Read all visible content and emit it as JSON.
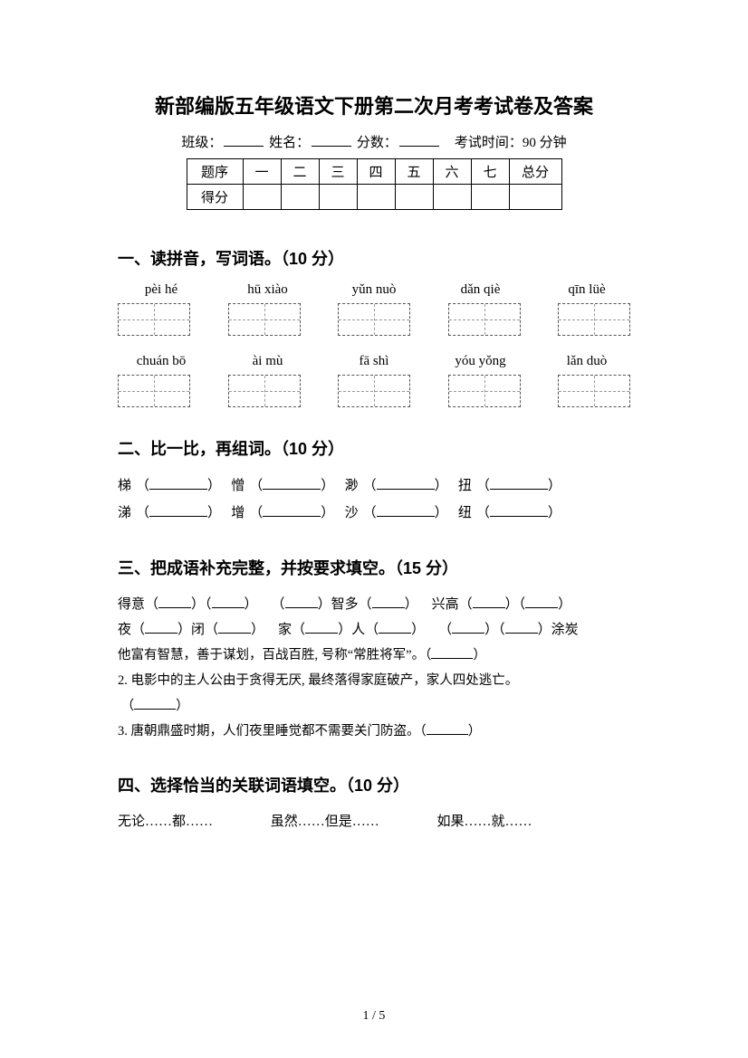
{
  "title": "新部编版五年级语文下册第二次月考考试卷及答案",
  "info": {
    "class_label": "班级：",
    "name_label": "姓名：",
    "score_label": "分数：",
    "time_label": "考试时间：90 分钟"
  },
  "score_table": {
    "row_label": "题序",
    "score_label": "得分",
    "cols": [
      "一",
      "二",
      "三",
      "四",
      "五",
      "六",
      "七"
    ],
    "total": "总分"
  },
  "s1": {
    "heading": "一、读拼音，写词语。（10 分）",
    "row1": [
      "pèi hé",
      "hū xiào",
      "yǔn nuò",
      "dǎn qiè",
      "qīn lüè"
    ],
    "row2": [
      "chuán bō",
      "ài mù",
      "fā shì",
      "yóu yǒng",
      "lǎn duò"
    ]
  },
  "s2": {
    "heading": "二、比一比，再组词。（10 分）",
    "pairs": [
      [
        "梯",
        "憎",
        "渺",
        "扭"
      ],
      [
        "涕",
        "增",
        "沙",
        "纽"
      ]
    ]
  },
  "s3": {
    "heading": "三、把成语补充完整，并按要求填空。（15 分）",
    "line1_parts": [
      "得意（",
      "）（",
      "）",
      "（",
      "）智多（",
      "）",
      "兴高（",
      "）（",
      "）"
    ],
    "line2_parts": [
      "夜（",
      "）闭（",
      "）",
      "家（",
      "）人（",
      "）",
      "（",
      "）（",
      "）涂炭"
    ],
    "q1": "他富有智慧，善于谋划，百战百胜, 号称“常胜将军”。（",
    "q1_end": "）",
    "q2": "2. 电影中的主人公由于贪得无厌, 最终落得家庭破产，家人四处逃亡。",
    "q2_paren": "（",
    "q2_end": "）",
    "q3": "3. 唐朝鼎盛时期，人们夜里睡觉都不需要关门防盗。（",
    "q3_end": "）"
  },
  "s4": {
    "heading": "四、选择恰当的关联词语填空。（10 分）",
    "options": [
      "无论……都……",
      "虽然……但是……",
      "如果……就……"
    ]
  },
  "footer": "1 / 5",
  "colors": {
    "text": "#000000",
    "background": "#ffffff",
    "dash": "#777777"
  },
  "typography": {
    "title_fontsize": 22,
    "heading_fontsize": 18,
    "body_fontsize": 15,
    "footer_fontsize": 14
  }
}
